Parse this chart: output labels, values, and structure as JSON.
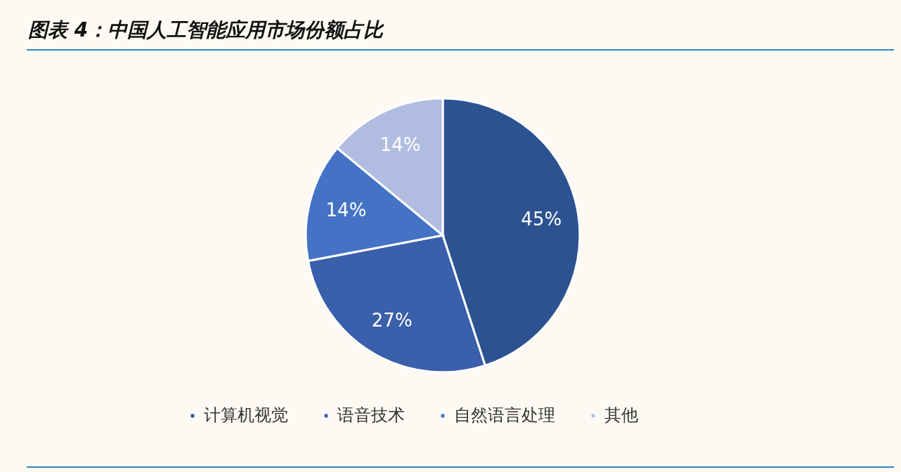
{
  "chart_data": {
    "type": "pie",
    "title": "图表 4：中国人工智能应用市场份额占比",
    "categories": [
      "计算机视觉",
      "语音技术",
      "自然语言处理",
      "其他"
    ],
    "values": [
      45,
      27,
      14,
      14
    ],
    "colors": [
      "#2c5291",
      "#3a5fab",
      "#4472c4",
      "#b1bde0"
    ],
    "value_labels": [
      "45%",
      "27%",
      "14%",
      "14%"
    ],
    "legend": "bottom"
  }
}
